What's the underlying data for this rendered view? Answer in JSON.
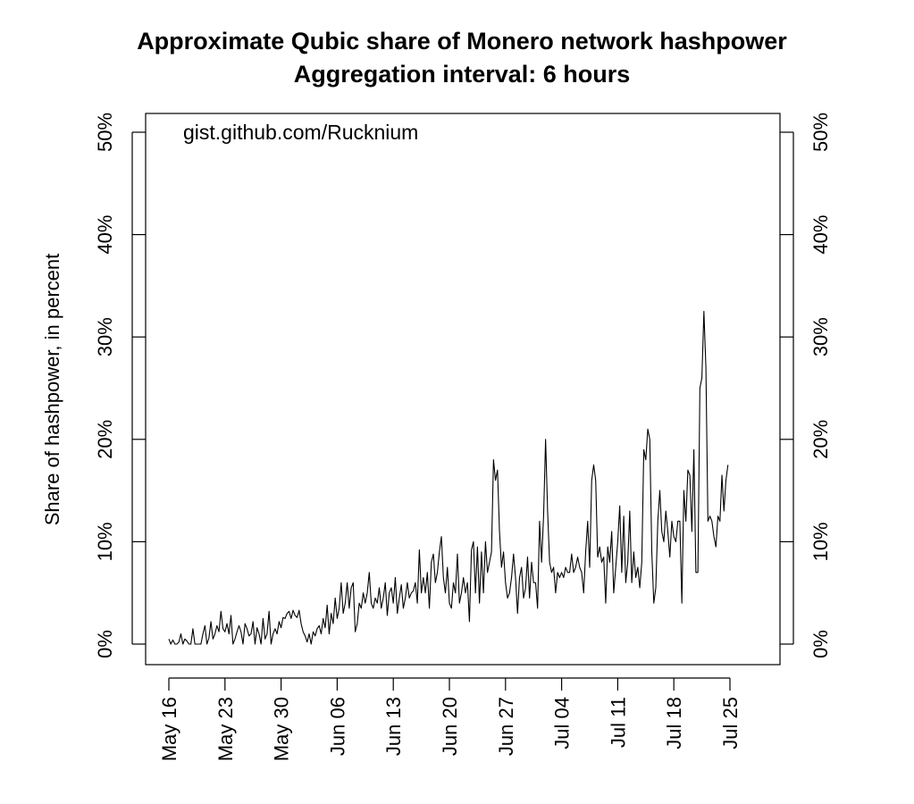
{
  "chart_data": {
    "type": "line",
    "title": "Approximate Qubic share of Monero network hashpower",
    "subtitle": "Aggregation interval: 6 hours",
    "ylabel": "Share of hashpower, in percent",
    "annotation": "gist.github.com/Rucknium",
    "ylim": [
      0,
      50
    ],
    "yticks": [
      0,
      10,
      20,
      30,
      40,
      50
    ],
    "ytick_labels": [
      "0%",
      "10%",
      "20%",
      "30%",
      "40%",
      "50%"
    ],
    "xticks": [
      "2025-05-16",
      "2025-05-23",
      "2025-05-30",
      "2025-06-06",
      "2025-06-13",
      "2025-06-20",
      "2025-06-27",
      "2025-07-04",
      "2025-07-11",
      "2025-07-18",
      "2025-07-25"
    ],
    "xtick_labels": [
      "May 16",
      "May 23",
      "May 30",
      "Jun 06",
      "Jun 13",
      "Jun 20",
      "Jun 27",
      "Jul 04",
      "Jul 11",
      "Jul 18",
      "Jul 25"
    ],
    "xlim": [
      "2025-05-14",
      "2025-08-01"
    ],
    "grid": false,
    "series": [
      {
        "x_start": "2025-05-16",
        "x_step_hours": 6,
        "values": [
          0.5,
          0.0,
          0.4,
          0.0,
          0.0,
          0.2,
          1.0,
          0.0,
          0.5,
          0.3,
          0.0,
          0.0,
          1.5,
          0.0,
          0.0,
          0.0,
          0.0,
          1.0,
          1.8,
          0.0,
          0.6,
          2.2,
          0.5,
          1.0,
          1.8,
          1.2,
          3.2,
          1.5,
          1.2,
          2.0,
          1.0,
          2.8,
          0.0,
          0.5,
          1.2,
          1.8,
          1.2,
          0.0,
          2.0,
          1.5,
          0.8,
          1.0,
          2.2,
          0.0,
          1.6,
          1.0,
          0.0,
          2.5,
          0.5,
          1.0,
          3.2,
          0.0,
          1.0,
          1.5,
          1.0,
          2.2,
          1.6,
          2.6,
          2.5,
          3.0,
          3.2,
          2.5,
          3.3,
          2.8,
          2.6,
          3.3,
          2.0,
          1.2,
          0.8,
          0.2,
          1.0,
          0.0,
          1.2,
          0.8,
          1.5,
          1.8,
          1.0,
          2.5,
          1.6,
          3.8,
          1.0,
          3.0,
          2.0,
          4.5,
          2.5,
          3.5,
          6.0,
          3.0,
          4.0,
          6.0,
          3.5,
          5.5,
          6.0,
          1.2,
          2.0,
          4.0,
          3.5,
          5.0,
          4.0,
          5.0,
          7.0,
          4.0,
          3.5,
          4.5,
          4.0,
          5.5,
          3.5,
          4.5,
          6.0,
          2.8,
          5.0,
          5.5,
          4.0,
          6.5,
          3.0,
          4.5,
          5.8,
          3.5,
          4.5,
          6.0,
          4.5,
          5.0,
          5.2,
          6.0,
          4.0,
          9.2,
          5.0,
          6.5,
          5.0,
          7.0,
          3.5,
          8.0,
          8.8,
          6.0,
          7.0,
          9.0,
          10.5,
          6.5,
          5.0,
          7.5,
          4.0,
          3.5,
          6.0,
          5.0,
          8.8,
          4.0,
          5.0,
          6.5,
          5.0,
          6.0,
          2.2,
          9.2,
          10.0,
          5.0,
          9.5,
          4.0,
          9.0,
          5.0,
          10.0,
          7.0,
          8.0,
          9.0,
          18.0,
          16.0,
          17.0,
          11.0,
          7.5,
          9.0,
          6.0,
          4.5,
          5.0,
          6.5,
          8.8,
          6.5,
          3.0,
          6.5,
          7.5,
          4.5,
          5.5,
          8.5,
          4.5,
          8.0,
          6.0,
          6.0,
          3.5,
          12.0,
          8.0,
          12.5,
          20.0,
          13.0,
          8.0,
          7.0,
          7.5,
          5.0,
          7.0,
          6.5,
          7.0,
          6.5,
          7.5,
          7.0,
          7.0,
          8.8,
          7.0,
          7.5,
          8.5,
          7.5,
          7.0,
          5.0,
          9.0,
          12.0,
          7.5,
          16.0,
          17.5,
          16.0,
          8.5,
          9.5,
          8.0,
          8.5,
          4.0,
          9.5,
          8.0,
          11.0,
          5.0,
          7.5,
          10.0,
          13.5,
          7.0,
          12.5,
          6.0,
          8.0,
          13.0,
          6.0,
          9.0,
          6.5,
          7.5,
          5.5,
          8.0,
          19.0,
          18.0,
          21.0,
          20.0,
          9.0,
          4.0,
          5.5,
          12.0,
          15.0,
          11.0,
          10.0,
          13.0,
          11.0,
          8.5,
          12.0,
          10.5,
          10.0,
          12.0,
          12.0,
          4.0,
          15.0,
          12.0,
          17.0,
          16.5,
          11.0,
          19.0,
          7.0,
          7.0,
          25.0,
          26.0,
          32.5,
          27.0,
          12.0,
          12.5,
          12.0,
          10.5,
          9.5,
          12.5,
          12.0,
          16.5,
          13.0,
          16.0,
          17.5
        ]
      }
    ]
  }
}
